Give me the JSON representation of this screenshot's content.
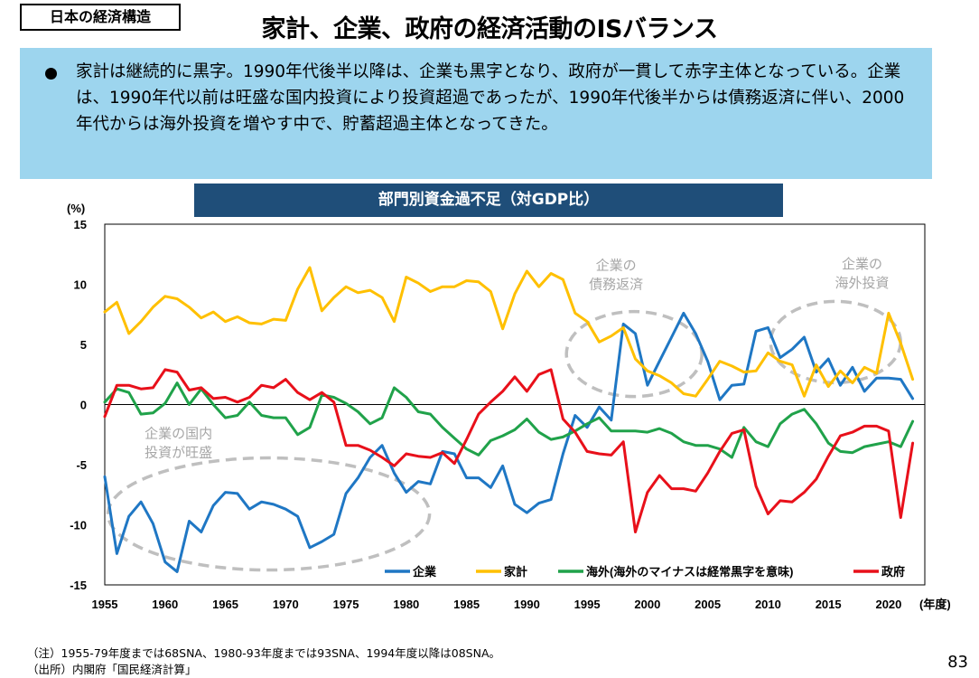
{
  "header": {
    "section_tag": "日本の経済構造",
    "title": "家計、企業、政府の経済活動のISバランス"
  },
  "summary": {
    "text": "家計は継続的に黒字。1990年代後半以降は、企業も黒字となり、政府が一貫して赤字主体となっている。企業は、1990年代以前は旺盛な国内投資により投資超過であったが、1990年代後半からは債務返済に伴い、2000年代からは海外投資を増やす中で、貯蓄超過主体となってきた。"
  },
  "footer": {
    "note": "（注）1955-79年度までは68SNA、1980-93年度までは93SNA、1994年度以降は08SNA。",
    "source": "（出所）内閣府「国民経済計算」",
    "page_number": "83"
  },
  "chart_data": {
    "type": "line",
    "title": "部門別資金過不足（対GDP比）",
    "ylabel": "(%)",
    "xlabel": "(年度)",
    "xlim": [
      1955,
      2023
    ],
    "ylim": [
      -15,
      15
    ],
    "grid": false,
    "legend_position": "bottom-right",
    "x_ticks": [
      1955,
      1960,
      1965,
      1970,
      1975,
      1980,
      1985,
      1990,
      1995,
      2000,
      2005,
      2010,
      2015,
      2020
    ],
    "x_tick_labels": [
      "1955",
      "1960",
      "1965",
      "1970",
      "1975",
      "1980",
      "1985",
      "1990",
      "1995",
      "2000",
      "2005",
      "2010",
      "2015",
      "2020"
    ],
    "y_ticks": [
      15,
      10,
      5,
      0,
      -5,
      -10,
      -15
    ],
    "y_tick_labels": [
      "15",
      "10",
      "5",
      "0",
      "-5",
      "-10",
      "-15"
    ],
    "x": [
      1955,
      1956,
      1957,
      1958,
      1959,
      1960,
      1961,
      1962,
      1963,
      1964,
      1965,
      1966,
      1967,
      1968,
      1969,
      1970,
      1971,
      1972,
      1973,
      1974,
      1975,
      1976,
      1977,
      1978,
      1979,
      1980,
      1981,
      1982,
      1983,
      1984,
      1985,
      1986,
      1987,
      1988,
      1989,
      1990,
      1991,
      1992,
      1993,
      1994,
      1995,
      1996,
      1997,
      1998,
      1999,
      2000,
      2001,
      2002,
      2003,
      2004,
      2005,
      2006,
      2007,
      2008,
      2009,
      2010,
      2011,
      2012,
      2013,
      2014,
      2015,
      2016,
      2017,
      2018,
      2019,
      2020,
      2021,
      2022
    ],
    "series": [
      {
        "name": "企業",
        "color": "#1f77c4",
        "values": [
          -6,
          -12.4,
          -9.3,
          -8.1,
          -9.9,
          -13.1,
          -13.9,
          -9.7,
          -10.6,
          -8.4,
          -7.3,
          -7.4,
          -8.7,
          -8.1,
          -8.3,
          -8.7,
          -9.3,
          -11.9,
          -11.4,
          -10.8,
          -7.4,
          -6.1,
          -4.4,
          -3.4,
          -5.7,
          -7.3,
          -6.4,
          -6.6,
          -3.9,
          -4.1,
          -6.1,
          -6.1,
          -6.9,
          -5.1,
          -8.3,
          -9.0,
          -8.2,
          -7.9,
          -4.1,
          -0.9,
          -1.9,
          -0.2,
          -1.3,
          6.7,
          5.9,
          1.6,
          3.6,
          5.6,
          7.6,
          5.9,
          3.6,
          0.4,
          1.6,
          1.7,
          6.1,
          6.4,
          3.9,
          4.6,
          5.6,
          2.7,
          3.8,
          1.6,
          3.1,
          1.1,
          2.2,
          2.2,
          2.1,
          0.5
        ]
      },
      {
        "name": "家計",
        "color": "#ffc000",
        "values": [
          7.7,
          8.5,
          5.9,
          6.9,
          8.1,
          9.0,
          8.8,
          8.1,
          7.2,
          7.7,
          6.9,
          7.3,
          6.8,
          6.7,
          7.1,
          7.0,
          9.6,
          11.4,
          7.8,
          8.9,
          9.8,
          9.3,
          9.5,
          8.9,
          6.9,
          10.6,
          10.1,
          9.4,
          9.8,
          9.8,
          10.3,
          10.2,
          9.4,
          6.3,
          9.2,
          11.1,
          9.8,
          10.9,
          10.4,
          7.6,
          6.9,
          5.2,
          5.7,
          6.4,
          3.8,
          2.8,
          2.4,
          1.8,
          0.9,
          0.7,
          2.1,
          3.6,
          3.2,
          2.7,
          2.8,
          4.3,
          3.6,
          3.3,
          0.7,
          3.3,
          1.5,
          2.8,
          1.8,
          3.1,
          2.6,
          7.6,
          5.1,
          2.1
        ]
      },
      {
        "name": "海外(海外のマイナスは経常黒字を意味)",
        "color": "#20a24a",
        "values": [
          0.2,
          1.3,
          1.0,
          -0.8,
          -0.7,
          0.1,
          1.8,
          0,
          1.3,
          0,
          -1.1,
          -0.9,
          0.2,
          -0.9,
          -1.1,
          -1.1,
          -2.5,
          -1.9,
          0.8,
          0.6,
          0.1,
          -0.6,
          -1.6,
          -1.1,
          1.4,
          0.6,
          -0.6,
          -0.8,
          -1.9,
          -2.8,
          -3.7,
          -4.2,
          -3.0,
          -2.6,
          -2.1,
          -1.2,
          -2.3,
          -2.9,
          -2.7,
          -2.2,
          -1.6,
          -1.1,
          -2.2,
          -2.2,
          -2.2,
          -2.3,
          -2.0,
          -2.4,
          -3.1,
          -3.4,
          -3.4,
          -3.7,
          -4.4,
          -1.9,
          -3.1,
          -3.5,
          -1.6,
          -0.8,
          -0.4,
          -1.6,
          -3.2,
          -3.9,
          -4.0,
          -3.5,
          -3.3,
          -3.1,
          -3.5,
          -1.4
        ]
      },
      {
        "name": "政府",
        "color": "#e8101a",
        "values": [
          -1,
          1.6,
          1.6,
          1.3,
          1.4,
          2.9,
          2.7,
          1.2,
          1.4,
          0.5,
          0.6,
          0.2,
          0.6,
          1.6,
          1.4,
          2.1,
          1.0,
          0.4,
          1.0,
          0.2,
          -3.4,
          -3.4,
          -3.8,
          -4.4,
          -5.1,
          -4.1,
          -4.3,
          -4.4,
          -4.0,
          -4.9,
          -2.9,
          -0.8,
          0.2,
          1.1,
          2.3,
          1.1,
          2.5,
          2.9,
          -1.2,
          -2.3,
          -3.9,
          -4.1,
          -4.2,
          -3.1,
          -10.6,
          -7.3,
          -5.9,
          -7.0,
          -7.0,
          -7.2,
          -5.7,
          -3.9,
          -2.4,
          -2.1,
          -6.8,
          -9.1,
          -8.0,
          -8.1,
          -7.3,
          -6.2,
          -4.3,
          -2.6,
          -2.3,
          -1.8,
          -1.8,
          -2.2,
          -9.4,
          -3.2
        ]
      }
    ],
    "annotations": [
      {
        "text": "企業の国内",
        "text2": "投資が旺盛"
      },
      {
        "text": "企業の",
        "text2": "債務返済"
      },
      {
        "text": "企業の",
        "text2": "海外投資"
      }
    ]
  }
}
